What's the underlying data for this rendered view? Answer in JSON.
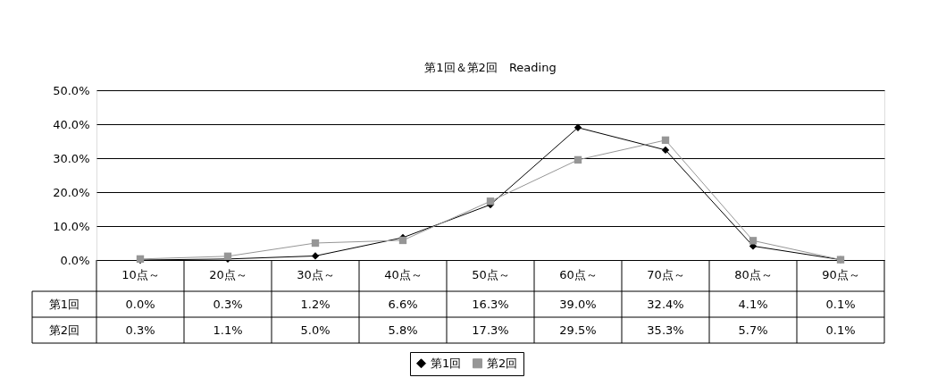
{
  "chart_data": {
    "type": "line",
    "title": "第1回＆第2回　Reading",
    "categories": [
      "10点～",
      "20点～",
      "30点～",
      "40点～",
      "50点～",
      "60点～",
      "70点～",
      "80点～",
      "90点～"
    ],
    "series": [
      {
        "name": "第1回",
        "color": "#000000",
        "marker": "diamond",
        "values": [
          0.0,
          0.3,
          1.2,
          6.6,
          16.3,
          39.0,
          32.4,
          4.1,
          0.1
        ],
        "value_labels": [
          "0.0%",
          "0.3%",
          "1.2%",
          "6.6%",
          "16.3%",
          "39.0%",
          "32.4%",
          "4.1%",
          "0.1%"
        ]
      },
      {
        "name": "第2回",
        "color": "#969696",
        "marker": "square",
        "values": [
          0.3,
          1.1,
          5.0,
          5.8,
          17.3,
          29.5,
          35.3,
          5.7,
          0.1
        ],
        "value_labels": [
          "0.3%",
          "1.1%",
          "5.0%",
          "5.8%",
          "17.3%",
          "29.5%",
          "35.3%",
          "5.7%",
          "0.1%"
        ]
      }
    ],
    "ylim": [
      0,
      50
    ],
    "yticks": [
      {
        "value": 0,
        "label": "0.0%"
      },
      {
        "value": 10,
        "label": "10.0%"
      },
      {
        "value": 20,
        "label": "20.0%"
      },
      {
        "value": 30,
        "label": "30.0%"
      },
      {
        "value": 40,
        "label": "40.0%"
      },
      {
        "value": 50,
        "label": "50.0%"
      }
    ],
    "grid": "y",
    "legend": "bottom",
    "line_style": "solid"
  }
}
